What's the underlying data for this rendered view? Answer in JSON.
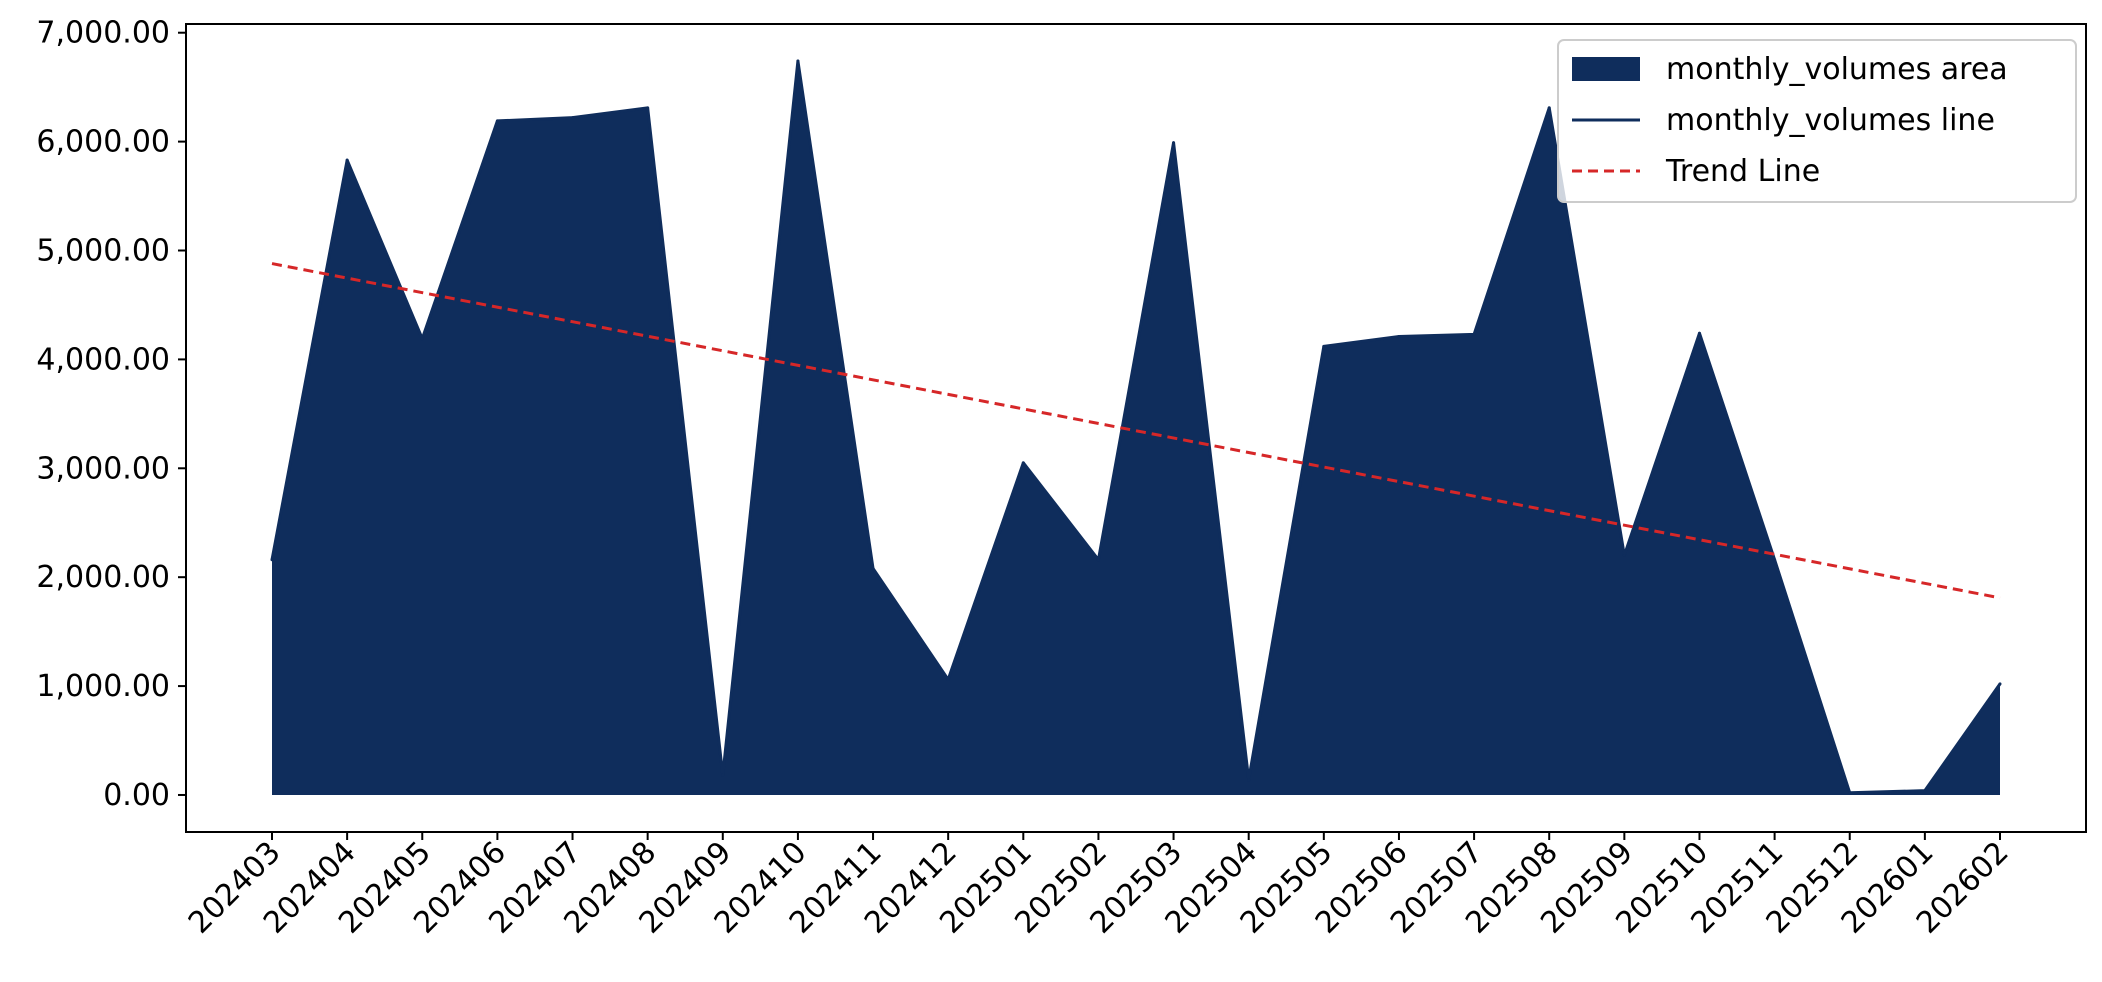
{
  "chart_data": {
    "type": "area",
    "title": "",
    "xlabel": "",
    "ylabel": "",
    "categories": [
      "202403",
      "202404",
      "202405",
      "202406",
      "202407",
      "202408",
      "202409",
      "202410",
      "202411",
      "202412",
      "202501",
      "202502",
      "202503",
      "202504",
      "202505",
      "202506",
      "202507",
      "202508",
      "202509",
      "202510",
      "202511",
      "202512",
      "202601",
      "202602"
    ],
    "series": [
      {
        "name": "monthly_volumes area",
        "kind": "area",
        "color": "#0f2d5c",
        "values": [
          2160,
          5830,
          4190,
          6190,
          6220,
          6310,
          180,
          6740,
          2080,
          1060,
          3050,
          2160,
          5990,
          140,
          4120,
          4210,
          4230,
          6310,
          2200,
          4240,
          2160,
          20,
          40,
          1020
        ]
      },
      {
        "name": "monthly_volumes line",
        "kind": "line",
        "color": "#0f2d5c",
        "values": [
          2160,
          5830,
          4190,
          6190,
          6220,
          6310,
          180,
          6740,
          2080,
          1060,
          3050,
          2160,
          5990,
          140,
          4120,
          4210,
          4230,
          6310,
          2200,
          4240,
          2160,
          20,
          40,
          1020
        ]
      },
      {
        "name": "Trend Line",
        "kind": "trend",
        "color": "#d62728",
        "start": 4880,
        "end": 1810
      }
    ],
    "ylim": [
      -340,
      7080
    ],
    "yticks": [
      0,
      1000,
      2000,
      3000,
      4000,
      5000,
      6000,
      7000
    ],
    "ytick_labels": [
      "0.00",
      "1,000.00",
      "2,000.00",
      "3,000.00",
      "4,000.00",
      "5,000.00",
      "6,000.00",
      "7,000.00"
    ],
    "grid": false,
    "legend_position": "top-right"
  }
}
